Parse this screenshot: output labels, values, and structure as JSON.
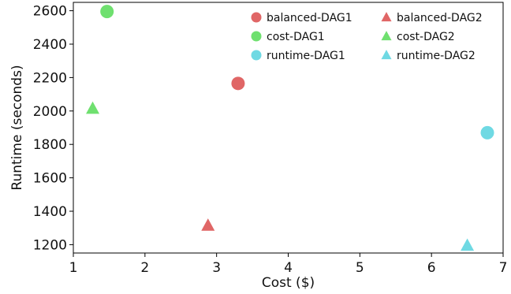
{
  "chart_data": {
    "type": "scatter",
    "title": "",
    "xlabel": "Cost ($)",
    "ylabel": "Runtime (seconds)",
    "xlim": [
      1,
      7
    ],
    "ylim": [
      1150,
      2650
    ],
    "xticks": [
      1,
      2,
      3,
      4,
      5,
      6,
      7
    ],
    "yticks": [
      1200,
      1400,
      1600,
      1800,
      2000,
      2200,
      2400,
      2600
    ],
    "grid": false,
    "legend_position": "top-right",
    "series": [
      {
        "name": "balanced-DAG1",
        "marker": "circle",
        "color": "#e06666",
        "points": [
          {
            "x": 3.3,
            "y": 2165
          }
        ]
      },
      {
        "name": "cost-DAG1",
        "marker": "circle",
        "color": "#6fe06f",
        "points": [
          {
            "x": 1.47,
            "y": 2595
          }
        ]
      },
      {
        "name": "runtime-DAG1",
        "marker": "circle",
        "color": "#6fd9e3",
        "points": [
          {
            "x": 6.78,
            "y": 1870
          }
        ]
      },
      {
        "name": "balanced-DAG2",
        "marker": "triangle",
        "color": "#e06666",
        "points": [
          {
            "x": 2.88,
            "y": 1315
          }
        ]
      },
      {
        "name": "cost-DAG2",
        "marker": "triangle",
        "color": "#6fe06f",
        "points": [
          {
            "x": 1.27,
            "y": 2015
          }
        ]
      },
      {
        "name": "runtime-DAG2",
        "marker": "triangle",
        "color": "#6fd9e3",
        "points": [
          {
            "x": 6.5,
            "y": 1195
          }
        ]
      }
    ]
  }
}
